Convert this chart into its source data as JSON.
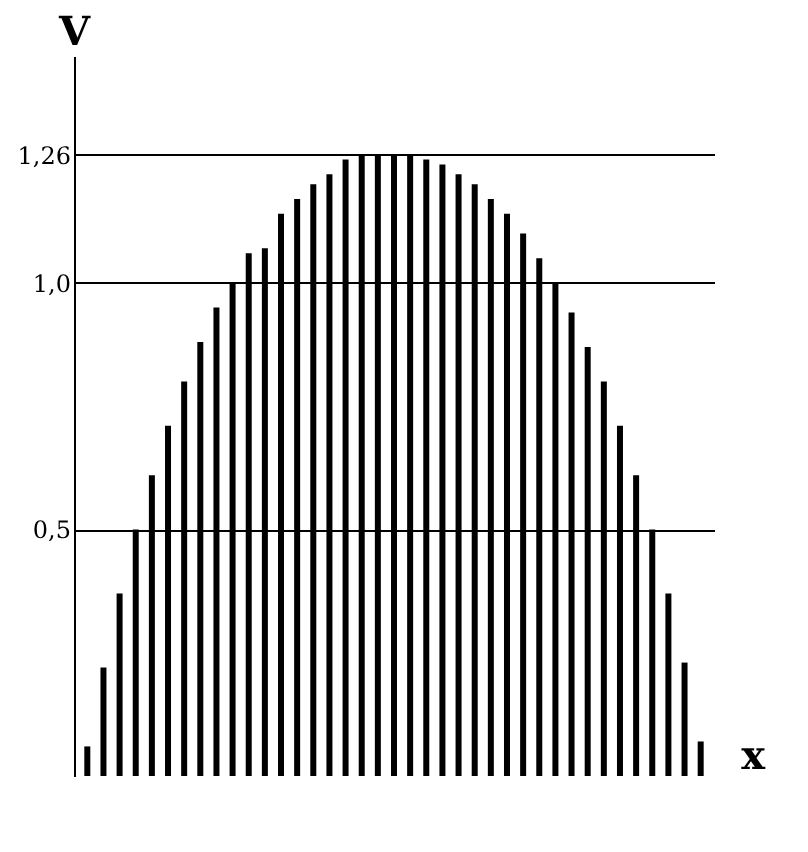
{
  "chart_data": {
    "type": "bar",
    "xlabel": "x",
    "ylabel": "V",
    "categories": [
      null,
      null,
      null,
      null,
      null,
      null,
      null,
      null,
      null,
      null,
      null,
      null,
      null,
      null,
      null,
      null,
      null,
      null,
      null,
      null,
      null,
      null,
      null,
      null,
      null,
      null,
      null,
      null,
      null,
      null,
      null,
      null,
      null,
      null,
      null,
      null,
      null,
      null,
      null
    ],
    "values": [
      0.06,
      0.22,
      0.37,
      0.5,
      0.61,
      0.71,
      0.8,
      0.88,
      0.95,
      1.0,
      1.06,
      1.07,
      1.14,
      1.17,
      1.2,
      1.22,
      1.25,
      1.26,
      1.26,
      1.26,
      1.26,
      1.25,
      1.24,
      1.22,
      1.2,
      1.17,
      1.14,
      1.1,
      1.05,
      1.0,
      0.94,
      0.87,
      0.8,
      0.71,
      0.61,
      0.5,
      0.37,
      0.23,
      0.07
    ],
    "color": "#000000",
    "ylim": [
      0,
      1.46
    ],
    "yticks": [
      {
        "value": 0.5,
        "label": "0,5"
      },
      {
        "value": 1.0,
        "label": "1,0"
      },
      {
        "value": 1.26,
        "label": "1,26"
      }
    ],
    "grid": "y",
    "tick_labels": "y"
  }
}
